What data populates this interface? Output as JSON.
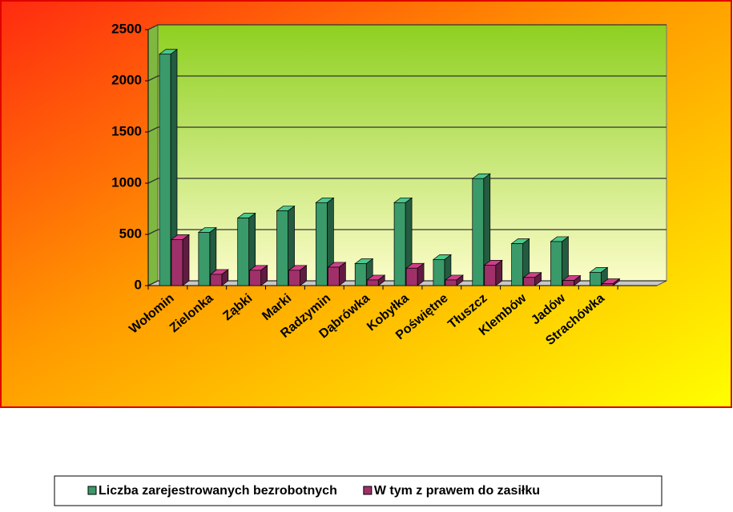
{
  "chart_data": {
    "type": "bar3d",
    "categories": [
      "Wołomin",
      "Zielonka",
      "Ząbki",
      "Marki",
      "Radzymin",
      "Dąbrówka",
      "Kobyłka",
      "Poświętne",
      "Tłuszcz",
      "Klembów",
      "Jadów",
      "Strachówka",
      null
    ],
    "series": [
      {
        "name": "Liczba zarejestrowanych bezrobotnych",
        "color": "#3a9a6a",
        "values": [
          2260,
          520,
          660,
          730,
          810,
          215,
          810,
          255,
          1045,
          410,
          430,
          130,
          null
        ]
      },
      {
        "name": "W tym z prawem do zasiłku",
        "color": "#a0306a",
        "values": [
          450,
          110,
          150,
          150,
          180,
          55,
          170,
          55,
          200,
          80,
          50,
          20,
          null
        ]
      }
    ],
    "ylim": [
      0,
      2500
    ],
    "yticks": [
      0,
      500,
      1000,
      1500,
      2000,
      2500
    ],
    "grid": true,
    "legend": "bottom"
  }
}
